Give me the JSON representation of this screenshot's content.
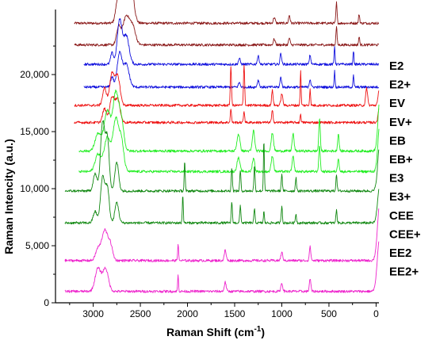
{
  "chart_data": {
    "type": "line",
    "title": "",
    "xlabel": "Raman Shift (cm",
    "xlabel_sup": "-1",
    "xlabel_tail": ")",
    "ylabel": "Raman Intencity (a.u.)",
    "xlim": [
      3400,
      -30
    ],
    "ylim": [
      0,
      25700
    ],
    "x_reversed": true,
    "grid": false,
    "legend": "right, stacked labels aligned with traces",
    "xticks": [
      3000,
      2500,
      2000,
      1500,
      1000,
      500,
      0
    ],
    "xtick_labels": [
      "3000",
      "2500",
      "2000",
      "1500",
      "1000",
      "500",
      "0"
    ],
    "yticks": [
      0,
      5000,
      10000,
      15000,
      20000
    ],
    "ytick_labels": [
      "0",
      "5,000",
      "10,000",
      "15,000",
      "20,000"
    ],
    "series": [
      {
        "name": "E2",
        "color": "#8b1a1a",
        "x_start": 3200,
        "baseline": 24500,
        "peaks": [
          [
            2740,
            1800,
            22
          ],
          [
            2660,
            3700,
            40
          ],
          [
            2600,
            3000,
            30
          ],
          [
            1080,
            500,
            10
          ],
          [
            920,
            700,
            8
          ],
          [
            420,
            1800,
            6
          ],
          [
            180,
            800,
            6
          ],
          [
            -120,
            5000,
            14
          ]
        ]
      },
      {
        "name": "E2+",
        "color": "#8b1a1a",
        "x_start": 3200,
        "baseline": 22600,
        "peaks": [
          [
            2730,
            1500,
            22
          ],
          [
            2650,
            2500,
            35
          ],
          [
            2580,
            1500,
            30
          ],
          [
            1080,
            500,
            10
          ],
          [
            920,
            600,
            8
          ],
          [
            420,
            1600,
            6
          ],
          [
            180,
            700,
            6
          ],
          [
            -120,
            4800,
            14
          ]
        ]
      },
      {
        "name": "EV",
        "color": "#1010dd",
        "x_start": 3100,
        "baseline": 20900,
        "peaks": [
          [
            2800,
            1000,
            15
          ],
          [
            2720,
            3800,
            25
          ],
          [
            2650,
            2500,
            30
          ],
          [
            1450,
            500,
            10
          ],
          [
            1250,
            700,
            10
          ],
          [
            1010,
            1000,
            8
          ],
          [
            700,
            800,
            8
          ],
          [
            440,
            1600,
            5
          ],
          [
            240,
            1200,
            5
          ],
          [
            -100,
            4500,
            14
          ]
        ]
      },
      {
        "name": "EV+",
        "color": "#1010dd",
        "x_start": 3100,
        "baseline": 18900,
        "peaks": [
          [
            2800,
            900,
            15
          ],
          [
            2720,
            3000,
            25
          ],
          [
            2650,
            2000,
            30
          ],
          [
            1450,
            400,
            10
          ],
          [
            1250,
            600,
            10
          ],
          [
            1010,
            900,
            8
          ],
          [
            700,
            700,
            8
          ],
          [
            440,
            1400,
            5
          ],
          [
            240,
            1000,
            5
          ],
          [
            -100,
            4200,
            14
          ]
        ]
      },
      {
        "name": "EB",
        "color": "#ee1111",
        "x_start": 3200,
        "baseline": 17300,
        "peaks": [
          [
            2880,
            1500,
            20
          ],
          [
            2800,
            2800,
            25
          ],
          [
            2740,
            2500,
            25
          ],
          [
            1540,
            3500,
            6
          ],
          [
            1400,
            3600,
            6
          ],
          [
            1000,
            1000,
            10
          ],
          [
            1100,
            1300,
            8
          ],
          [
            800,
            3000,
            5
          ],
          [
            700,
            1500,
            5
          ],
          [
            100,
            1500,
            10
          ],
          [
            -60,
            5000,
            20
          ]
        ]
      },
      {
        "name": "EB+",
        "color": "#ee1111",
        "x_start": 3200,
        "baseline": 15800,
        "peaks": [
          [
            2880,
            1200,
            20
          ],
          [
            2800,
            2200,
            25
          ],
          [
            2740,
            2000,
            25
          ],
          [
            1540,
            1200,
            6
          ],
          [
            1400,
            1000,
            6
          ],
          [
            1100,
            1000,
            8
          ],
          [
            800,
            800,
            5
          ],
          [
            -60,
            4500,
            20
          ]
        ]
      },
      {
        "name": "E3",
        "color": "#22ee22",
        "x_start": 3150,
        "baseline": 13300,
        "peaks": [
          [
            2950,
            1500,
            30
          ],
          [
            2850,
            3500,
            35
          ],
          [
            2760,
            5000,
            30
          ],
          [
            2700,
            2500,
            25
          ],
          [
            1460,
            1500,
            15
          ],
          [
            1300,
            1800,
            12
          ],
          [
            1100,
            1600,
            12
          ],
          [
            880,
            1500,
            10
          ],
          [
            600,
            2800,
            8
          ],
          [
            400,
            1500,
            8
          ],
          [
            -40,
            4500,
            20
          ]
        ]
      },
      {
        "name": "E3+",
        "color": "#22ee22",
        "x_start": 3150,
        "baseline": 11500,
        "peaks": [
          [
            2950,
            1500,
            30
          ],
          [
            2850,
            3000,
            35
          ],
          [
            2760,
            4500,
            30
          ],
          [
            2700,
            2500,
            25
          ],
          [
            1460,
            1200,
            15
          ],
          [
            1300,
            1200,
            12
          ],
          [
            1100,
            1400,
            12
          ],
          [
            880,
            1300,
            10
          ],
          [
            600,
            2200,
            8
          ],
          [
            400,
            1200,
            8
          ],
          [
            -40,
            4200,
            20
          ]
        ]
      },
      {
        "name": "CEE",
        "color": "#118811",
        "x_start": 3300,
        "baseline": 9800,
        "peaks": [
          [
            2980,
            1500,
            20
          ],
          [
            2900,
            6000,
            22
          ],
          [
            2850,
            4500,
            20
          ],
          [
            2750,
            2500,
            20
          ],
          [
            2030,
            2600,
            5
          ],
          [
            1530,
            2000,
            6
          ],
          [
            1440,
            1800,
            6
          ],
          [
            1290,
            2200,
            6
          ],
          [
            1190,
            4500,
            5
          ],
          [
            1000,
            1500,
            6
          ],
          [
            850,
            1200,
            6
          ],
          [
            420,
            1500,
            6
          ],
          [
            -40,
            4200,
            22
          ]
        ]
      },
      {
        "name": "CEE+",
        "color": "#118811",
        "x_start": 3300,
        "baseline": 7000,
        "peaks": [
          [
            2980,
            1000,
            20
          ],
          [
            2900,
            4000,
            22
          ],
          [
            2850,
            3000,
            20
          ],
          [
            2750,
            1800,
            20
          ],
          [
            2050,
            2500,
            5
          ],
          [
            1530,
            1800,
            6
          ],
          [
            1440,
            1500,
            6
          ],
          [
            1290,
            1200,
            6
          ],
          [
            1190,
            1000,
            5
          ],
          [
            1000,
            1500,
            6
          ],
          [
            850,
            800,
            6
          ],
          [
            420,
            1200,
            6
          ],
          [
            -40,
            3500,
            22
          ]
        ]
      },
      {
        "name": "EE2",
        "color": "#ee22cc",
        "x_start": 3300,
        "baseline": 3700,
        "peaks": [
          [
            2950,
            1000,
            25
          ],
          [
            2880,
            2600,
            30
          ],
          [
            2820,
            1400,
            25
          ],
          [
            2100,
            1500,
            5
          ],
          [
            1600,
            900,
            10
          ],
          [
            1000,
            700,
            10
          ],
          [
            700,
            1200,
            8
          ],
          [
            -40,
            5000,
            25
          ]
        ]
      },
      {
        "name": "EE2+",
        "color": "#ee22cc",
        "x_start": 3300,
        "baseline": 1000,
        "peaks": [
          [
            2950,
            2000,
            30
          ],
          [
            2870,
            2000,
            30
          ],
          [
            2100,
            1400,
            5
          ],
          [
            1600,
            800,
            10
          ],
          [
            1000,
            700,
            10
          ],
          [
            700,
            1100,
            8
          ],
          [
            -40,
            5000,
            25
          ]
        ]
      }
    ]
  }
}
